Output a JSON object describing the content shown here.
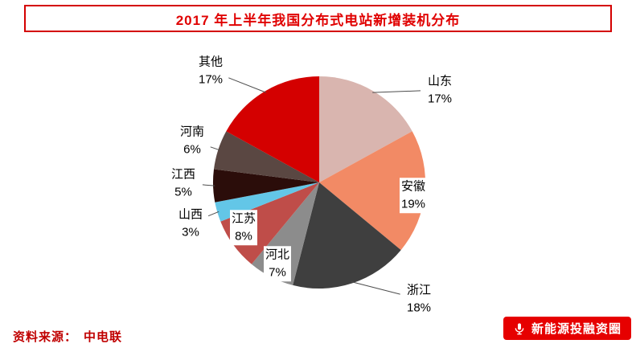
{
  "header": {
    "title": "2017 年上半年我国分布式电站新增装机分布"
  },
  "chart_data": {
    "type": "pie",
    "title": "2017 年上半年我国分布式电站新增装机分布",
    "categories": [
      "山东",
      "安徽",
      "浙江",
      "河北",
      "江苏",
      "山西",
      "江西",
      "河南",
      "其他"
    ],
    "values": [
      17,
      19,
      18,
      7,
      8,
      3,
      5,
      6,
      17
    ],
    "unit": "%",
    "colors": [
      "#d9b5af",
      "#f28a65",
      "#3f3f3f",
      "#8c8c8c",
      "#bf4d49",
      "#63c6e7",
      "#2b0d0a",
      "#5a4742",
      "#d40000"
    ],
    "start_angle_deg": 0,
    "direction": "clockwise",
    "legend_position": "none",
    "labels_outside": true,
    "label_format": "name + percent"
  },
  "footer": {
    "source_label": "资料来源：",
    "source_value": "中电联"
  },
  "badge": {
    "text": "新能源投融资圈",
    "icon": "microphone-icon",
    "background": "#e60000",
    "text_color": "#ffffff"
  }
}
